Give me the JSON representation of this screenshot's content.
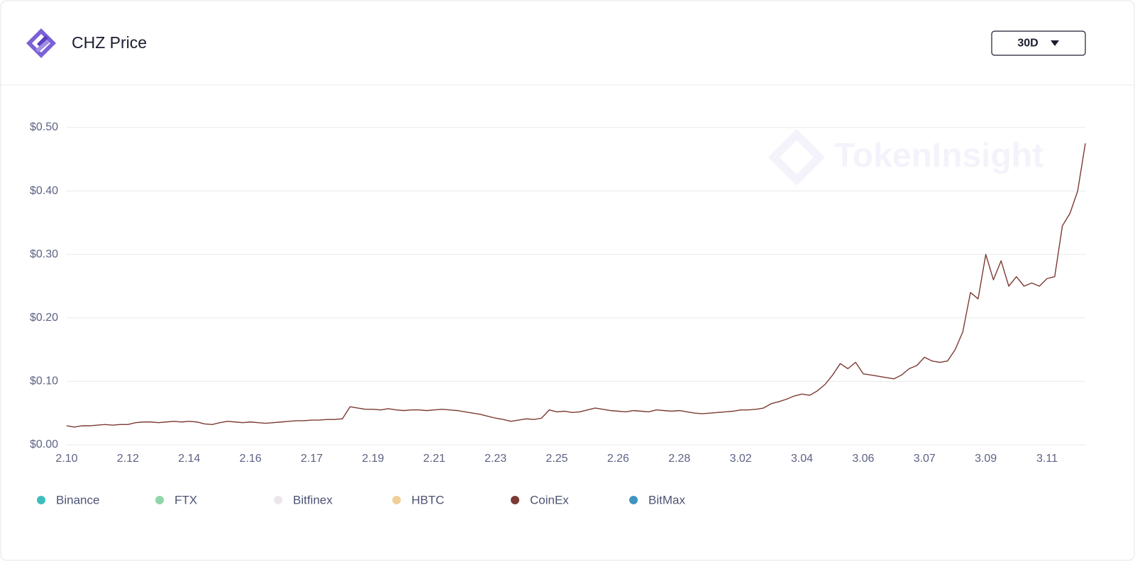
{
  "chart_data": {
    "type": "line",
    "title": "CHZ Price",
    "range_selector": "30D",
    "watermark": "TokenInsight",
    "categories": [
      "2.10",
      null,
      null,
      null,
      null,
      null,
      null,
      null,
      "2.12",
      null,
      null,
      null,
      null,
      null,
      null,
      null,
      "2.14",
      null,
      null,
      null,
      null,
      null,
      null,
      null,
      "2.16",
      null,
      null,
      null,
      null,
      null,
      null,
      null,
      "2.17",
      null,
      null,
      null,
      null,
      null,
      null,
      null,
      "2.19",
      null,
      null,
      null,
      null,
      null,
      null,
      null,
      "2.21",
      null,
      null,
      null,
      null,
      null,
      null,
      null,
      "2.23",
      null,
      null,
      null,
      null,
      null,
      null,
      null,
      "2.25",
      null,
      null,
      null,
      null,
      null,
      null,
      null,
      "2.26",
      null,
      null,
      null,
      null,
      null,
      null,
      null,
      "2.28",
      null,
      null,
      null,
      null,
      null,
      null,
      null,
      "3.02",
      null,
      null,
      null,
      null,
      null,
      null,
      null,
      "3.04",
      null,
      null,
      null,
      null,
      null,
      null,
      null,
      "3.06",
      null,
      null,
      null,
      null,
      null,
      null,
      null,
      "3.07",
      null,
      null,
      null,
      null,
      null,
      null,
      null,
      "3.09",
      null,
      null,
      null,
      null,
      null,
      null,
      null,
      "3.11",
      null,
      null,
      null,
      null,
      null
    ],
    "series": [
      {
        "name": "Binance",
        "color": "#3dbdbd"
      },
      {
        "name": "FTX",
        "color": "#8fd6a9"
      },
      {
        "name": "Bitfinex",
        "color": "#ece6ec",
        "disabled": true
      },
      {
        "name": "HBTC",
        "color": "#f0cf98"
      },
      {
        "name": "CoinEx",
        "color": "#7b3a33",
        "values": [
          0.03,
          0.028,
          0.03,
          0.03,
          0.031,
          0.032,
          0.031,
          0.032,
          0.032,
          0.035,
          0.036,
          0.036,
          0.035,
          0.036,
          0.037,
          0.036,
          0.037,
          0.036,
          0.033,
          0.032,
          0.035,
          0.037,
          0.036,
          0.035,
          0.036,
          0.035,
          0.034,
          0.035,
          0.036,
          0.037,
          0.038,
          0.038,
          0.039,
          0.039,
          0.04,
          0.04,
          0.041,
          0.06,
          0.058,
          0.056,
          0.056,
          0.055,
          0.057,
          0.055,
          0.054,
          0.055,
          0.055,
          0.054,
          0.055,
          0.056,
          0.055,
          0.054,
          0.052,
          0.05,
          0.048,
          0.045,
          0.042,
          0.04,
          0.037,
          0.039,
          0.041,
          0.04,
          0.042,
          0.055,
          0.052,
          0.053,
          0.051,
          0.052,
          0.055,
          0.058,
          0.056,
          0.054,
          0.053,
          0.052,
          0.054,
          0.053,
          0.052,
          0.055,
          0.054,
          0.053,
          0.054,
          0.052,
          0.05,
          0.049,
          0.05,
          0.051,
          0.052,
          0.053,
          0.055,
          0.055,
          0.056,
          0.058,
          0.065,
          0.068,
          0.072,
          0.077,
          0.08,
          0.078,
          0.085,
          0.095,
          0.11,
          0.128,
          0.12,
          0.13,
          0.112,
          0.11,
          0.108,
          0.106,
          0.104,
          0.11,
          0.12,
          0.125,
          0.138,
          0.132,
          0.13,
          0.132,
          0.15,
          0.178,
          0.24,
          0.23,
          0.3,
          0.26,
          0.29,
          0.25,
          0.265,
          0.25,
          0.255,
          0.25,
          0.262,
          0.265,
          0.345,
          0.365,
          0.4,
          0.475
        ]
      },
      {
        "name": "BitMax",
        "color": "#3f95c1"
      }
    ],
    "ylim": [
      0,
      0.5
    ],
    "yticks": [
      {
        "value": 0,
        "label": "$0.00"
      },
      {
        "value": 0.1,
        "label": "$0.10"
      },
      {
        "value": 0.2,
        "label": "$0.20"
      },
      {
        "value": 0.3,
        "label": "$0.30"
      },
      {
        "value": 0.4,
        "label": "$0.40"
      },
      {
        "value": 0.5,
        "label": "$0.50"
      }
    ],
    "grid": true
  }
}
